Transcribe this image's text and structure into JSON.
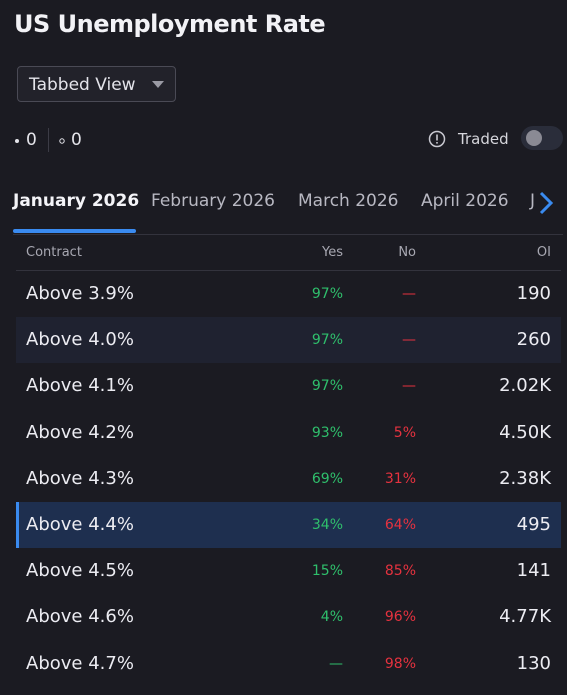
{
  "header": {
    "title": "US Unemployment Rate",
    "view_select": "Tabbed View"
  },
  "counters": {
    "first": "0",
    "second": "0",
    "traded_label": "Traded"
  },
  "tabs": {
    "items": [
      "January 2026",
      "February 2026",
      "March 2026",
      "April 2026",
      "J"
    ],
    "active": 0
  },
  "table": {
    "columns": [
      "Contract",
      "Yes",
      "No",
      "OI"
    ],
    "rows": [
      [
        "Above 3.9%",
        "97%",
        "—",
        "190"
      ],
      [
        "Above 4.0%",
        "97%",
        "—",
        "260"
      ],
      [
        "Above 4.1%",
        "97%",
        "—",
        "2.02K"
      ],
      [
        "Above 4.2%",
        "93%",
        "5%",
        "4.50K"
      ],
      [
        "Above 4.3%",
        "69%",
        "31%",
        "2.38K"
      ],
      [
        "Above 4.4%",
        "34%",
        "64%",
        "495"
      ],
      [
        "Above 4.5%",
        "15%",
        "85%",
        "141"
      ],
      [
        "Above 4.6%",
        "4%",
        "96%",
        "4.77K"
      ],
      [
        "Above 4.7%",
        "—",
        "98%",
        "130"
      ]
    ],
    "hovered_row": 1,
    "selected_row": 5
  }
}
